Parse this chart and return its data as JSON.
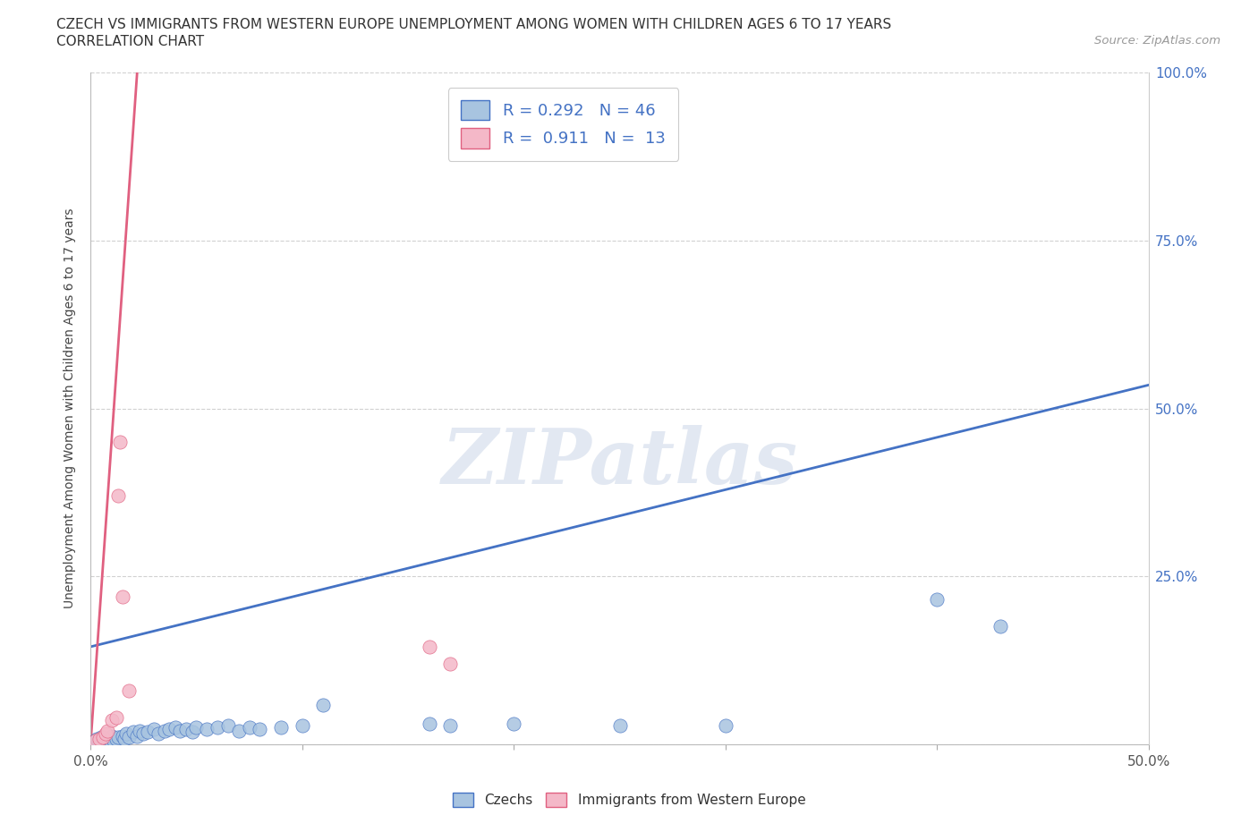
{
  "title_line1": "CZECH VS IMMIGRANTS FROM WESTERN EUROPE UNEMPLOYMENT AMONG WOMEN WITH CHILDREN AGES 6 TO 17 YEARS",
  "title_line2": "CORRELATION CHART",
  "source_text": "Source: ZipAtlas.com",
  "ylabel": "Unemployment Among Women with Children Ages 6 to 17 years",
  "xlim": [
    0.0,
    0.5
  ],
  "ylim": [
    0.0,
    1.0
  ],
  "watermark": "ZIPatlas",
  "legend_r1": "R = 0.292   N = 46",
  "legend_r2": "R =  0.911   N =  13",
  "czech_color": "#a8c4e0",
  "immigrant_color": "#f4b8c8",
  "czech_line_color": "#4472c4",
  "immigrant_line_color": "#e06080",
  "czech_scatter": [
    [
      0.002,
      0.005
    ],
    [
      0.003,
      0.008
    ],
    [
      0.004,
      0.003
    ],
    [
      0.005,
      0.01
    ],
    [
      0.006,
      0.005
    ],
    [
      0.007,
      0.008
    ],
    [
      0.008,
      0.003
    ],
    [
      0.009,
      0.006
    ],
    [
      0.01,
      0.012
    ],
    [
      0.011,
      0.005
    ],
    [
      0.012,
      0.008
    ],
    [
      0.013,
      0.01
    ],
    [
      0.015,
      0.012
    ],
    [
      0.016,
      0.008
    ],
    [
      0.017,
      0.015
    ],
    [
      0.018,
      0.01
    ],
    [
      0.02,
      0.018
    ],
    [
      0.022,
      0.012
    ],
    [
      0.023,
      0.02
    ],
    [
      0.025,
      0.015
    ],
    [
      0.027,
      0.018
    ],
    [
      0.03,
      0.022
    ],
    [
      0.032,
      0.015
    ],
    [
      0.035,
      0.02
    ],
    [
      0.037,
      0.022
    ],
    [
      0.04,
      0.025
    ],
    [
      0.042,
      0.02
    ],
    [
      0.045,
      0.022
    ],
    [
      0.048,
      0.018
    ],
    [
      0.05,
      0.025
    ],
    [
      0.055,
      0.022
    ],
    [
      0.06,
      0.025
    ],
    [
      0.065,
      0.028
    ],
    [
      0.07,
      0.02
    ],
    [
      0.075,
      0.025
    ],
    [
      0.08,
      0.022
    ],
    [
      0.09,
      0.025
    ],
    [
      0.1,
      0.028
    ],
    [
      0.11,
      0.058
    ],
    [
      0.16,
      0.03
    ],
    [
      0.17,
      0.028
    ],
    [
      0.2,
      0.03
    ],
    [
      0.25,
      0.028
    ],
    [
      0.3,
      0.028
    ],
    [
      0.4,
      0.215
    ],
    [
      0.43,
      0.175
    ]
  ],
  "immigrant_scatter": [
    [
      0.002,
      0.005
    ],
    [
      0.004,
      0.008
    ],
    [
      0.006,
      0.01
    ],
    [
      0.007,
      0.015
    ],
    [
      0.008,
      0.02
    ],
    [
      0.01,
      0.035
    ],
    [
      0.012,
      0.04
    ],
    [
      0.013,
      0.37
    ],
    [
      0.014,
      0.45
    ],
    [
      0.015,
      0.22
    ],
    [
      0.018,
      0.08
    ],
    [
      0.16,
      0.145
    ],
    [
      0.17,
      0.12
    ]
  ],
  "czech_trend_x": [
    0.0,
    0.5
  ],
  "czech_trend_y": [
    0.145,
    0.535
  ],
  "imm_trend_x": [
    0.0,
    0.022
  ],
  "imm_trend_y": [
    0.0,
    1.0
  ]
}
